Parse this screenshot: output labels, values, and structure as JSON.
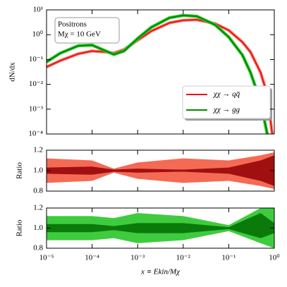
{
  "chart_data": [
    {
      "type": "line",
      "ylabel": "dN/dx",
      "annotation": [
        "Positrons",
        "Mχ = 10 GeV"
      ],
      "legend": "lower right",
      "xscale": "log",
      "yscale": "log",
      "xlim": [
        1e-05,
        1
      ],
      "ylim": [
        0.0001,
        10
      ],
      "yticks": [
        {
          "value": 0.0001,
          "label": "10⁻⁴"
        },
        {
          "value": 0.001,
          "label": "10⁻³"
        },
        {
          "value": 0.01,
          "label": "10⁻²"
        },
        {
          "value": 0.1,
          "label": "10⁻¹"
        },
        {
          "value": 1,
          "label": "10⁰"
        },
        {
          "value": 10,
          "label": "10¹"
        }
      ],
      "x": [
        1e-05,
        2e-05,
        5e-05,
        0.0001,
        0.0002,
        0.0003,
        0.0005,
        0.001,
        0.002,
        0.005,
        0.01,
        0.02,
        0.05,
        0.1,
        0.2,
        0.3,
        0.5,
        0.7,
        0.9
      ],
      "series": [
        {
          "name": "χχ → qq̄",
          "color": "#ee1111",
          "band_color": "#f58c80",
          "values": [
            0.05,
            0.09,
            0.17,
            0.22,
            0.2,
            0.18,
            0.25,
            0.6,
            1.4,
            3.0,
            3.8,
            4.0,
            2.8,
            1.5,
            0.5,
            0.2,
            0.03,
            0.004,
            0.0001
          ]
        },
        {
          "name": "χχ → gg",
          "color": "#008800",
          "band_color": "#33cc33",
          "values": [
            0.08,
            0.18,
            0.36,
            0.38,
            0.22,
            0.16,
            0.22,
            0.7,
            2.0,
            4.8,
            6.0,
            5.5,
            2.5,
            0.8,
            0.15,
            0.03,
            0.002,
            0.0001,
            null
          ]
        }
      ]
    },
    {
      "type": "band",
      "ylabel": "Ratio",
      "xscale": "log",
      "xlim": [
        1e-05,
        1
      ],
      "ylim": [
        0.8,
        1.2
      ],
      "yticks": [
        0.8,
        {
          "value": 1.0,
          "label": "1.0"
        },
        1.2
      ],
      "x": [
        1e-05,
        0.0001,
        0.0003,
        0.001,
        0.01,
        0.1,
        0.5,
        1
      ],
      "bands": [
        {
          "color": "#f56a55",
          "lower": [
            0.88,
            0.9,
            0.98,
            0.92,
            0.88,
            0.9,
            0.85,
            0.82
          ],
          "upper": [
            1.12,
            1.1,
            1.02,
            1.08,
            1.12,
            1.1,
            1.15,
            1.18
          ]
        },
        {
          "color": "#a01010",
          "lower": [
            0.97,
            0.96,
            0.99,
            0.98,
            0.99,
            0.97,
            0.9,
            0.85
          ],
          "upper": [
            1.03,
            1.04,
            1.01,
            1.02,
            1.01,
            1.03,
            1.1,
            1.15
          ]
        }
      ]
    },
    {
      "type": "band",
      "ylabel": "Ratio",
      "xlabel": "x ≡ Ekin/Mχ",
      "xscale": "log",
      "xlim": [
        1e-05,
        1
      ],
      "ylim": [
        0.8,
        1.2
      ],
      "yticks": [
        0.8,
        {
          "value": 1.0,
          "label": "1.0"
        },
        1.2
      ],
      "xticks": [
        {
          "value": 1e-05,
          "label": "10⁻⁵"
        },
        {
          "value": 0.0001,
          "label": "10⁻⁴"
        },
        {
          "value": 0.001,
          "label": "10⁻³"
        },
        {
          "value": 0.01,
          "label": "10⁻²"
        },
        {
          "value": 0.1,
          "label": "10⁻¹"
        },
        {
          "value": 1,
          "label": "10⁰"
        }
      ],
      "x": [
        1e-05,
        0.0001,
        0.0003,
        0.001,
        0.01,
        0.1,
        0.5,
        1
      ],
      "bands": [
        {
          "color": "#3ecc3e",
          "lower": [
            0.88,
            0.88,
            0.9,
            0.85,
            0.88,
            0.97,
            0.85,
            0.8
          ],
          "upper": [
            1.12,
            1.12,
            1.1,
            1.15,
            1.12,
            1.03,
            1.2,
            1.2
          ]
        },
        {
          "color": "#0a7a0a",
          "lower": [
            0.96,
            0.96,
            0.98,
            0.95,
            0.95,
            0.99,
            0.9,
            0.95
          ],
          "upper": [
            1.04,
            1.04,
            1.02,
            1.05,
            1.05,
            1.01,
            1.15,
            1.05
          ]
        }
      ]
    }
  ]
}
